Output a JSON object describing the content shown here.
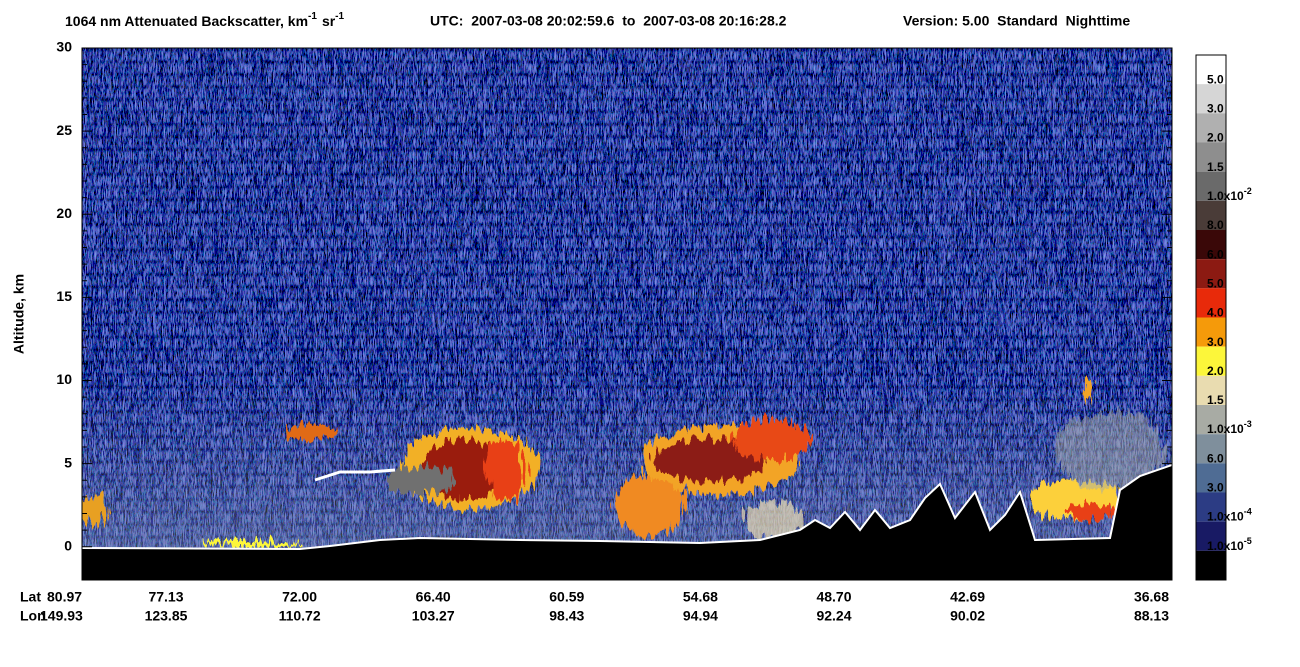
{
  "chart_data": {
    "type": "heatmap",
    "title": [
      "1064 nm Attenuated Backscatter, km",
      "-1",
      "sr",
      "-1"
    ],
    "subtitle": "UTC:  2007-03-08 20:02:59.6  to  2007-03-08 20:16:28.2",
    "version": "Version: 5.00  Standard  Nighttime",
    "ylabel": "Altitude, km",
    "ylim": [
      -2,
      30
    ],
    "yticks": [
      0,
      5,
      10,
      15,
      20,
      25,
      30
    ],
    "x_row_labels": [
      "Lat",
      "Lon"
    ],
    "lat": [
      "80.97",
      "77.13",
      "72.00",
      "66.40",
      "60.59",
      "54.68",
      "48.70",
      "42.69",
      "36.68"
    ],
    "lon": [
      "149.93",
      "123.85",
      "110.72",
      "103.27",
      "98.43",
      "94.94",
      "92.24",
      "90.02",
      "88.13"
    ],
    "colorbar": {
      "colors": [
        "#ffffff",
        "#d6d6d6",
        "#b0b0b0",
        "#8e8e8e",
        "#6a6a6a",
        "#4a3c38",
        "#3a0808",
        "#8c1a12",
        "#e82a0a",
        "#f59a0a",
        "#fcf63a",
        "#e9dcb0",
        "#a8aba4",
        "#7f8f9c",
        "#4f6c94",
        "#2c3c84",
        "#181a64",
        "#000000"
      ],
      "labels": [
        "5.0",
        "3.0",
        "2.0",
        "1.5",
        {
          "base": "1.0x10",
          "exp": "-2"
        },
        "8.0",
        "6.0",
        "5.0",
        "4.0",
        "3.0",
        "2.0",
        "1.5",
        {
          "base": "1.0x10",
          "exp": "-3"
        },
        "6.0",
        "3.0",
        {
          "base": "1.0x10",
          "exp": "-4"
        },
        {
          "base": "1.0x10",
          "exp": "-5"
        }
      ]
    }
  }
}
